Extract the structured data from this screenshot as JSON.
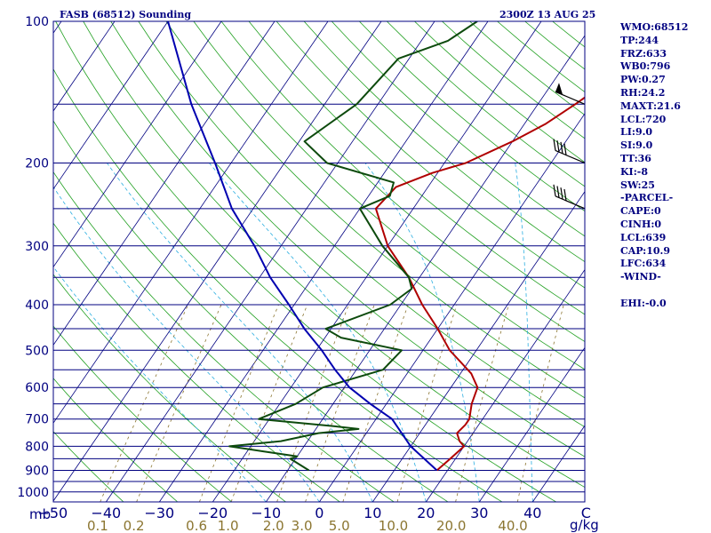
{
  "chart_data": {
    "type": "skew-t",
    "title": "FASB (68512) Sounding",
    "valid_time": "2300Z 13 AUG 25",
    "x_unit": "mb",
    "mixing_ratio_unit": "g/kg",
    "pressure_ticks": [
      100,
      200,
      300,
      400,
      500,
      600,
      700,
      800,
      900,
      1000
    ],
    "temperature_ticks": [
      -50,
      -40,
      -30,
      -20,
      -10,
      0,
      10,
      20,
      30,
      40,
      50
    ],
    "mixing_ratio_ticks": [
      "0.1",
      "0.2",
      "0.6",
      "1.0",
      "2.0",
      "3.0",
      "5.0",
      "10.0",
      "20.0",
      "40.0"
    ],
    "xlim": [
      -50,
      50
    ],
    "ylim": [
      1050,
      100
    ],
    "y_scale": "log",
    "series": [
      {
        "role": "temperature",
        "color": "#b00000",
        "points": [
          [
            900,
            18
          ],
          [
            850,
            19
          ],
          [
            800,
            20
          ],
          [
            780,
            18.5
          ],
          [
            750,
            17
          ],
          [
            720,
            17.5
          ],
          [
            700,
            17.5
          ],
          [
            650,
            16
          ],
          [
            600,
            15
          ],
          [
            560,
            12
          ],
          [
            500,
            5
          ],
          [
            450,
            0
          ],
          [
            400,
            -6
          ],
          [
            350,
            -12
          ],
          [
            300,
            -20
          ],
          [
            250,
            -27
          ],
          [
            225,
            -26
          ],
          [
            210,
            -21
          ],
          [
            200,
            -16
          ],
          [
            180,
            -10
          ],
          [
            165,
            -6
          ],
          [
            150,
            -3
          ],
          [
            135,
            0
          ],
          [
            125,
            2
          ],
          [
            120,
            3
          ],
          [
            105,
            8
          ],
          [
            100,
            10
          ]
        ]
      },
      {
        "role": "dewpoint",
        "color": "#0d4a0d",
        "points": [
          [
            900,
            -6
          ],
          [
            850,
            -11
          ],
          [
            840,
            -10
          ],
          [
            820,
            -17
          ],
          [
            800,
            -24
          ],
          [
            780,
            -15
          ],
          [
            750,
            -9
          ],
          [
            735,
            -2
          ],
          [
            725,
            -7
          ],
          [
            700,
            -22
          ],
          [
            650,
            -17
          ],
          [
            600,
            -14
          ],
          [
            550,
            -5
          ],
          [
            500,
            -4
          ],
          [
            470,
            -17
          ],
          [
            450,
            -21
          ],
          [
            400,
            -12
          ],
          [
            370,
            -10
          ],
          [
            350,
            -12
          ],
          [
            300,
            -21
          ],
          [
            250,
            -30
          ],
          [
            235,
            -26
          ],
          [
            220,
            -27
          ],
          [
            200,
            -42
          ],
          [
            180,
            -49
          ],
          [
            150,
            -44
          ],
          [
            120,
            -42
          ],
          [
            110,
            -35
          ],
          [
            100,
            -32
          ]
        ]
      },
      {
        "role": "parcel",
        "color": "#0000b0",
        "points": [
          [
            900,
            18
          ],
          [
            800,
            10
          ],
          [
            700,
            3
          ],
          [
            650,
            -3
          ],
          [
            600,
            -9
          ],
          [
            550,
            -14
          ],
          [
            500,
            -19
          ],
          [
            450,
            -25
          ],
          [
            400,
            -31
          ],
          [
            350,
            -38
          ],
          [
            300,
            -45
          ],
          [
            250,
            -54
          ],
          [
            200,
            -63
          ],
          [
            150,
            -75
          ],
          [
            100,
            -90
          ]
        ]
      }
    ],
    "wind_barbs": [
      {
        "pressure": 150,
        "type": "flag"
      },
      {
        "pressure": 200,
        "type": "barbs",
        "count": 4
      },
      {
        "pressure": 250,
        "type": "barbs",
        "count": 4
      }
    ]
  },
  "stats": [
    "WMO:68512",
    "TP:244",
    "FRZ:633",
    "WB0:796",
    "PW:0.27",
    "RH:24.2",
    "MAXT:21.6",
    "LCL:720",
    "LI:9.0",
    "SI:9.0",
    "TT:36",
    "KI:-8",
    "SW:25",
    "-PARCEL-",
    "CAPE:0",
    "CINH:0",
    "LCL:639",
    "CAP:10.9",
    "LFC:634",
    "-WIND-",
    "",
    "EHI:-0.0"
  ]
}
